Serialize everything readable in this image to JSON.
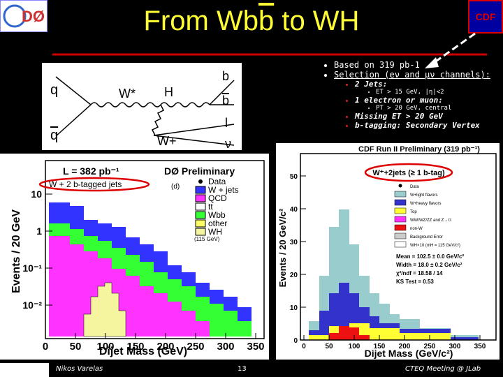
{
  "header": {
    "title_start": "From Wb",
    "title_bar": "b",
    "title_end": " to WH"
  },
  "bullets": [
    {
      "text": "Based on 319 pb-1"
    },
    {
      "text": "Selection (eν and μν channels):",
      "items": [
        {
          "text": "2 Jets:",
          "sub": "ET > 15 GeV, |η|<2"
        },
        {
          "text": "1 electron or muon:",
          "sub": "PT > 20 GeV, central"
        },
        {
          "text": "Missing ET > 20 GeV"
        },
        {
          "text": "b-tagging:  Secondary Vertex"
        }
      ]
    }
  ],
  "diagram": {
    "q": "q",
    "qbar": "q",
    "wstar": "W*",
    "h": "H",
    "b": "b",
    "bbar": "b",
    "wplus": "W+",
    "l": "l",
    "nu": "ν"
  },
  "left_plot": {
    "y_label": "Events / 20 GeV",
    "x_label": "Dijet Mass (GeV)",
    "lumi": "L = 382 pb⁻¹",
    "title": "DØ Preliminary",
    "selection": "W + 2 b-tagged jets",
    "panel": "(d)",
    "legend": [
      "Data",
      "W + jets",
      "QCD",
      "tt",
      "Wbb",
      "other",
      "WH"
    ],
    "wh_note": "(115 GeV)",
    "yticks": [
      "10",
      "1",
      "10⁻¹",
      "10⁻²"
    ],
    "xticks": [
      0,
      50,
      100,
      150,
      200,
      250,
      300,
      350
    ]
  },
  "right_plot": {
    "title": "CDF Run II Preliminary (319 pb⁻¹)",
    "y_label": "Events / 20 GeV/c²",
    "x_label": "Dijet Mass (GeV/c²)",
    "selection": "W⁺+2jets (≥ 1 b-tag)",
    "legend": [
      "Data",
      "W+light flavors",
      "W+heavy flavors",
      "Top",
      "WW/WZ/ZZ and Z→ττ",
      "non-W",
      "Background Error",
      "WH×10 (mH = 115 GeV/c²)"
    ],
    "stats": [
      "Mean = 102.5 ± 0.0 GeV/c²",
      "Width = 18.0 ± 0.2 GeV/c²",
      "χ²/ndf = 18.58 / 14",
      "KS Test = 0.53"
    ],
    "yticks": [
      0,
      10,
      20,
      30,
      40,
      50
    ],
    "xticks": [
      0,
      50,
      100,
      150,
      200,
      250,
      300,
      350
    ]
  },
  "footer": {
    "author": "Nikos Varelas",
    "page": "13",
    "event": "CTEQ Meeting @ JLab"
  }
}
